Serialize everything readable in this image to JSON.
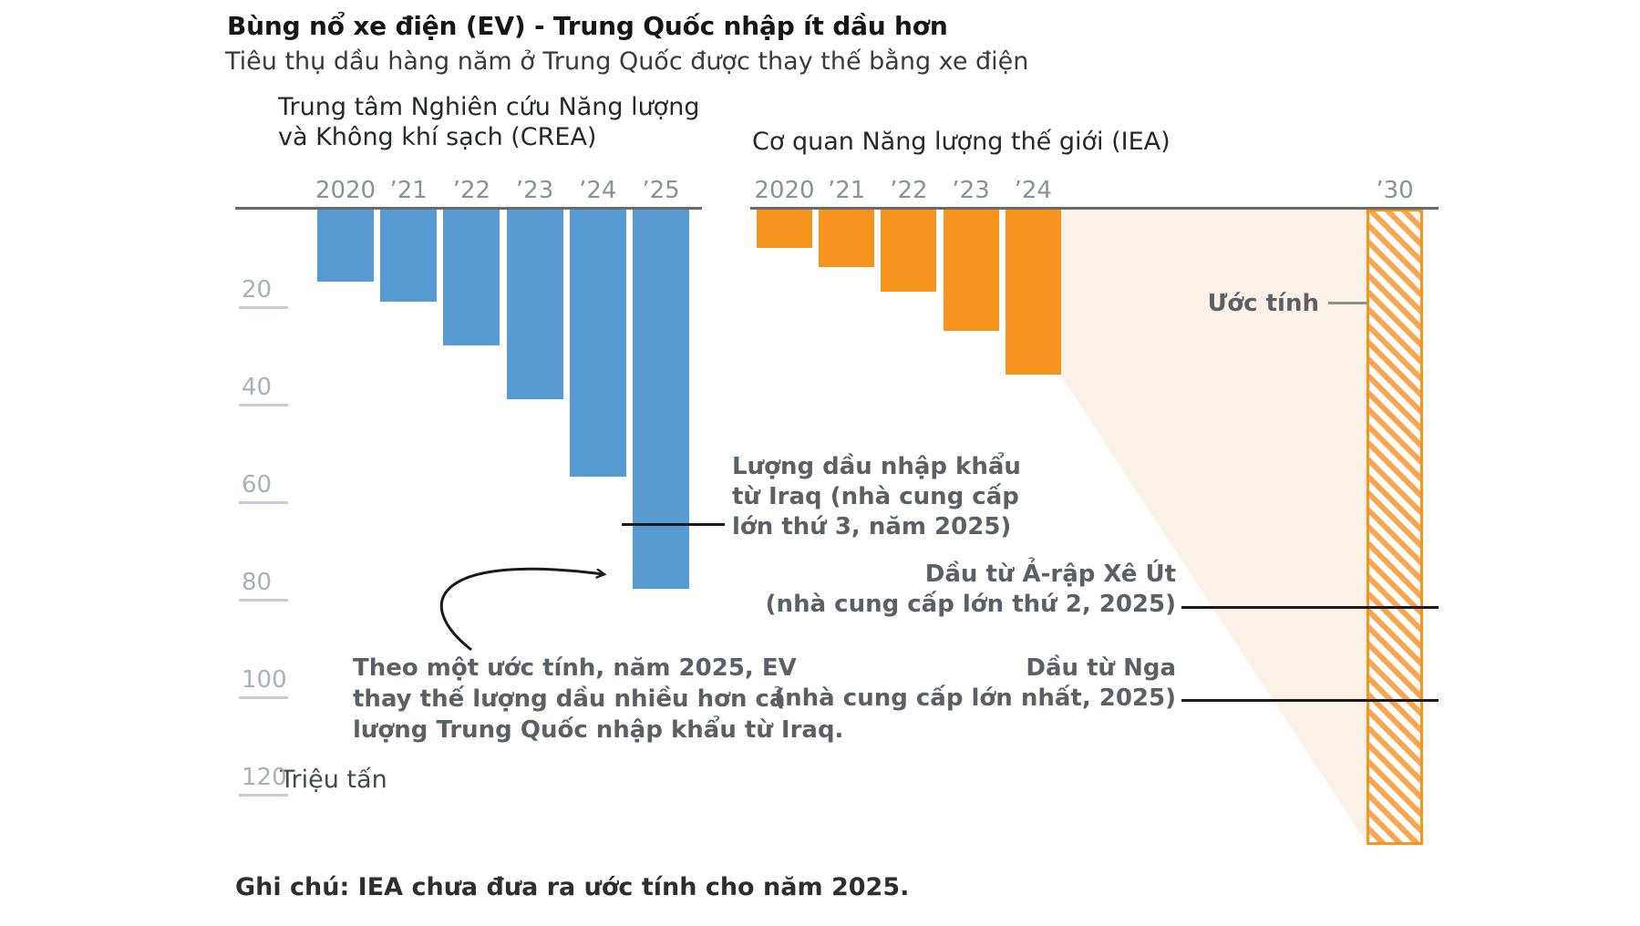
{
  "header": {
    "title": "Bùng nổ xe điện (EV) - Trung Quốc nhập ít dầu hơn",
    "subtitle": "Tiêu thụ dầu hàng năm ở Trung Quốc được thay thế bằng xe điện"
  },
  "panels": {
    "crea": {
      "label_line1": "Trung tâm Nghiên cứu Năng lượng",
      "label_line2": "và Không khí sạch (CREA)"
    },
    "iea": {
      "label": "Cơ quan Năng lượng thế giới (IEA)"
    }
  },
  "chart_data": {
    "type": "bar",
    "orientation": "downward-from-top-axis",
    "unit_label": "Triệu tấn",
    "ylabel": "Triệu tấn",
    "ylim": [
      0,
      130
    ],
    "yticks": [
      20,
      40,
      60,
      80,
      100,
      120
    ],
    "series": [
      {
        "name": "CREA",
        "color": "#569cd3",
        "categories": [
          "2020",
          "’21",
          "’22",
          "’23",
          "’24",
          "’25"
        ],
        "values": [
          15,
          19,
          28,
          39,
          55,
          78
        ]
      },
      {
        "name": "IEA",
        "color": "#f6941f",
        "categories": [
          "2020",
          "’21",
          "’22",
          "’23",
          "’24"
        ],
        "values": [
          8,
          12,
          17,
          25,
          34
        ]
      },
      {
        "name": "IEA-estimate",
        "color": "#f6941f",
        "hatched": true,
        "categories": [
          "’30"
        ],
        "values": [
          130.5
        ]
      }
    ],
    "reference_lines": [
      {
        "id": "iraq",
        "value": 64.5,
        "label": "Lượng dầu nhập khẩu từ Iraq (nhà cung cấp lớn thứ 3, năm 2025)"
      },
      {
        "id": "saudi",
        "value": 81.5,
        "label": "Dầu từ Ả-rập Xê Út (nhà cung cấp lớn thứ 2, 2025)"
      },
      {
        "id": "russia",
        "value": 100.5,
        "label": "Dầu từ Nga (nhà cung cấp lớn nhất, 2025)"
      }
    ]
  },
  "annotations": {
    "iraq": {
      "line1": "Lượng dầu nhập khẩu",
      "line2": "từ Iraq (nhà cung cấp",
      "line3": "lớn thứ 3, năm 2025)"
    },
    "estimate_label": "Ước tính",
    "saudi": {
      "line1": "Dầu từ Ả-rập Xê Út",
      "line2": "(nhà cung cấp lớn thứ 2, 2025)"
    },
    "russia": {
      "line1": "Dầu từ Nga",
      "line2": "(nhà cung cấp lớn nhất, 2025)"
    },
    "arrow_note": {
      "line1": "Theo một ước tính, năm 2025, EV",
      "line2": "thay thế lượng dầu nhiều hơn cả",
      "line3": "lượng Trung Quốc nhập khẩu từ Iraq."
    }
  },
  "footer": {
    "note": "Ghi chú: IEA chưa đưa ra ước tính cho năm 2025."
  },
  "colors": {
    "crea_bar": "#569cd3",
    "iea_bar": "#f6941f",
    "hatch_stripe": "#f9a64e",
    "wedge_fill": "#fcf1e6",
    "axis": "#6a6a6a",
    "marker_line": "#1a1a1a"
  }
}
